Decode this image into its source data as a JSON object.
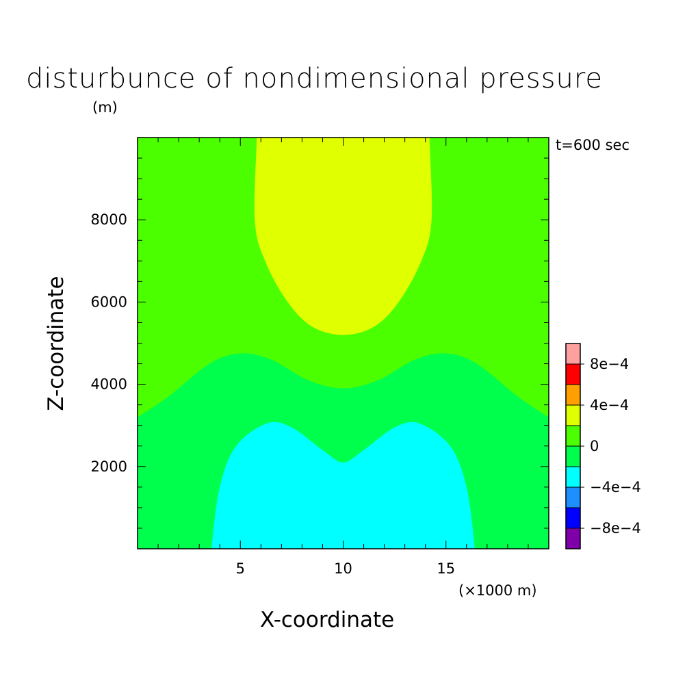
{
  "chart_data": {
    "type": "heatmap",
    "title": "disturbunce of nondimensional pressure",
    "unit_label": "(m)",
    "time_label": "t=600 sec",
    "xlabel": "X-coordinate",
    "ylabel": "Z-coordinate",
    "x_unit_label": "(×1000 m)",
    "xlim": [
      0,
      20
    ],
    "ylim": [
      0,
      10000
    ],
    "x_ticks": [
      5,
      10,
      15
    ],
    "x_tick_labels": [
      "5",
      "10",
      "15"
    ],
    "y_ticks": [
      2000,
      4000,
      6000,
      8000
    ],
    "y_tick_labels": [
      "2000",
      "4000",
      "6000",
      "8000"
    ],
    "colorbar": {
      "levels": [
        -0.001,
        -0.0008,
        -0.0006,
        -0.0004,
        -0.0002,
        0,
        0.0002,
        0.0004,
        0.0006,
        0.0008,
        0.001
      ],
      "colors": [
        "#7f00a8",
        "#0000ff",
        "#1e8fff",
        "#00ffff",
        "#00ff4c",
        "#4cff00",
        "#e0ff00",
        "#ff9f00",
        "#ff0000",
        "#ffa0a0"
      ],
      "tick_values": [
        -0.0008,
        -0.0004,
        0,
        0.0004,
        0.0008
      ],
      "tick_labels": [
        "-8e-4",
        "-4e-4",
        "0",
        "4e-4",
        "8e-4"
      ]
    },
    "regions": [
      {
        "name": "positive-core",
        "range": [
          0.0002,
          0.0004
        ],
        "color": "#e0ff00",
        "boundary": [
          [
            5.8,
            10000
          ],
          [
            5.7,
            8000
          ],
          [
            6.2,
            7000
          ],
          [
            7.3,
            6000
          ],
          [
            8.5,
            5400
          ],
          [
            10,
            5200
          ],
          [
            11.5,
            5400
          ],
          [
            12.7,
            6000
          ],
          [
            13.8,
            7000
          ],
          [
            14.3,
            8000
          ],
          [
            14.2,
            10000
          ]
        ]
      },
      {
        "name": "weak-negative",
        "range": [
          -0.0002,
          0
        ],
        "color": "#00ff4c",
        "boundary": [
          [
            0,
            3200
          ],
          [
            1.5,
            3700
          ],
          [
            3.5,
            4500
          ],
          [
            5,
            4750
          ],
          [
            6.5,
            4600
          ],
          [
            8.3,
            4100
          ],
          [
            10,
            3900
          ],
          [
            11.7,
            4100
          ],
          [
            13.5,
            4600
          ],
          [
            15,
            4750
          ],
          [
            16.5,
            4500
          ],
          [
            18.5,
            3700
          ],
          [
            20,
            3200
          ],
          [
            20,
            0
          ],
          [
            0,
            0
          ]
        ]
      },
      {
        "name": "negative-core",
        "range": [
          -0.0004,
          -0.0002
        ],
        "color": "#00ffff",
        "boundary": [
          [
            3.6,
            0
          ],
          [
            4,
            1500
          ],
          [
            4.8,
            2500
          ],
          [
            6.3,
            3050
          ],
          [
            7.5,
            2950
          ],
          [
            9,
            2400
          ],
          [
            10,
            2100
          ],
          [
            11,
            2400
          ],
          [
            12.5,
            2950
          ],
          [
            13.7,
            3050
          ],
          [
            15.2,
            2500
          ],
          [
            16,
            1500
          ],
          [
            16.4,
            0
          ]
        ]
      }
    ],
    "background_range": [
      0,
      0.0002
    ],
    "background_color": "#4cff00",
    "grid": false
  }
}
